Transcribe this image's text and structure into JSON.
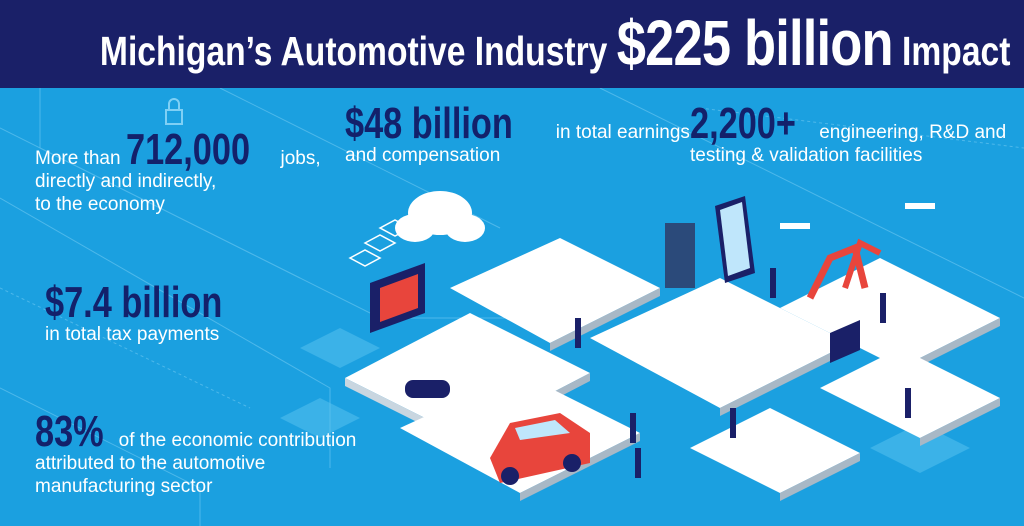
{
  "header": {
    "title_pre": "Michigan’s Automotive Industry ",
    "title_value": "$225 billion",
    "title_post": " Impact"
  },
  "stats": {
    "jobs": {
      "prefix": "More than ",
      "value": "712,000",
      "suffix": " jobs,",
      "line2": "directly and indirectly,",
      "line3": "to the economy"
    },
    "earnings": {
      "value": "$48 billion",
      "suffix": " in total earnings",
      "line2": "and compensation"
    },
    "facilities": {
      "value": "2,200+",
      "suffix": "engineering, R&D and",
      "line2": "testing & validation facilities"
    },
    "tax": {
      "value": "$7.4 billion",
      "line2": "in total tax payments"
    },
    "share": {
      "value": "83%",
      "suffix": " of the economic contribution",
      "line2": "attributed to the automotive",
      "line3": "manufacturing sector"
    }
  },
  "colors": {
    "background": "#1ba0e0",
    "header": "#1a2068",
    "accent_number": "#13216b",
    "car": "#e8453c"
  }
}
